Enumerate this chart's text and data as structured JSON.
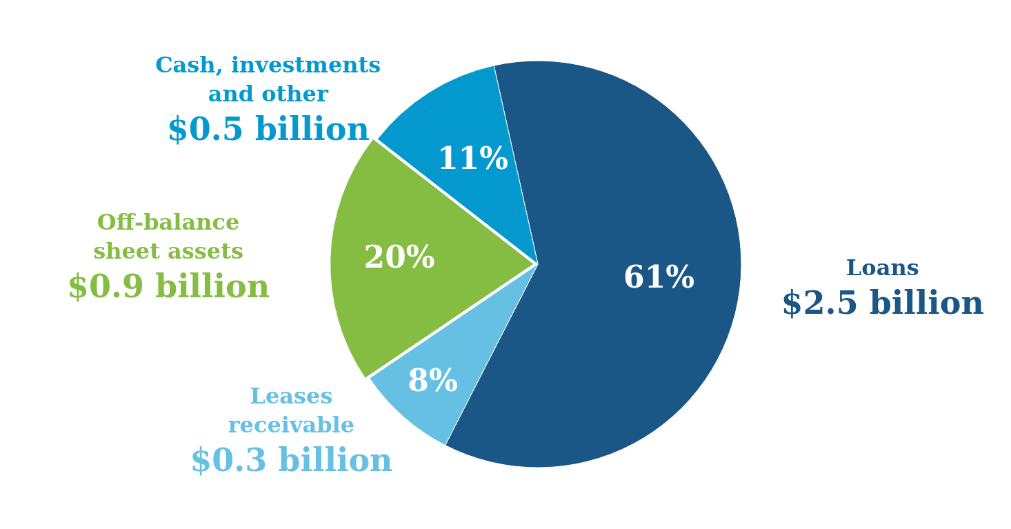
{
  "chart_data": {
    "type": "pie",
    "categories": [
      "Loans",
      "Leases receivable",
      "Off-balance sheet assets",
      "Cash, investments and other"
    ],
    "values": [
      61,
      8,
      20,
      11
    ],
    "colors": [
      "#1a5686",
      "#66c0e4",
      "#84bd41",
      "#0399cf"
    ],
    "value_labels": [
      "61%",
      "8%",
      "20%",
      "11%"
    ],
    "annotations": [
      "$2.5 billion",
      "$0.3 billion",
      "$0.9 billion",
      "$0.5 billion"
    ]
  }
}
